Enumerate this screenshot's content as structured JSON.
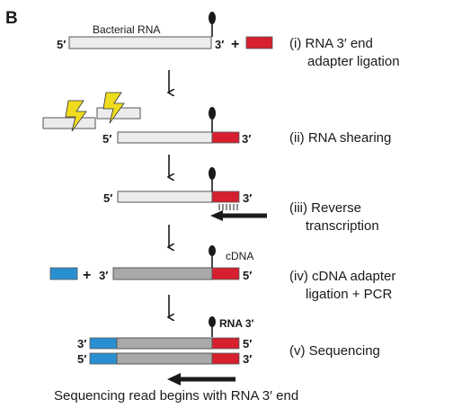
{
  "panel_letter": "B",
  "colors": {
    "rna_fill": "#ececec",
    "rna_stroke": "#555555",
    "adapter_red": "#d6202f",
    "adapter_blue": "#2a8fd1",
    "cdna_gray": "#a9a9aa",
    "lightning": "#f0dc1e",
    "ink": "#1a1a1a"
  },
  "step1": {
    "rna_label": "Bacterial RNA",
    "five_prime": "5′",
    "three_prime": "3′",
    "plus": "+",
    "caption_line1": "(i) RNA 3′ end",
    "caption_line2": "adapter ligation"
  },
  "step2": {
    "five_prime": "5′",
    "three_prime": "3′",
    "caption": "(ii) RNA shearing"
  },
  "step3": {
    "five_prime": "5′",
    "three_prime": "3′",
    "caption_line1": "(iii) Reverse",
    "caption_line2": "transcription"
  },
  "step4": {
    "three_prime": "3′",
    "five_prime": "5′",
    "plus": "+",
    "cdna_label": "cDNA",
    "caption_line1": "(iv) cDNA adapter",
    "caption_line2": "ligation + PCR"
  },
  "step5": {
    "rna3_label": "RNA 3′",
    "strand1_left": "3′",
    "strand1_right": "5′",
    "strand2_left": "5′",
    "strand2_right": "3′",
    "caption": "(v)  Sequencing"
  },
  "footer": "Sequencing read begins with RNA 3′ end"
}
